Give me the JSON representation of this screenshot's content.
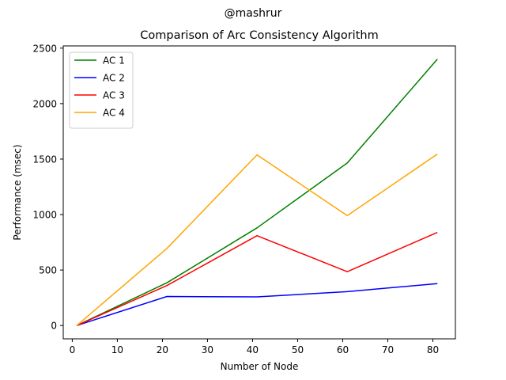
{
  "suptitle": "@mashrur",
  "chart_data": {
    "type": "line",
    "title": "Comparison of Arc Consistency Algorithm",
    "xlabel": "Number of Node",
    "ylabel": "Performance (msec)",
    "x": [
      1,
      21,
      41,
      61,
      81
    ],
    "xlim": [
      -2.0,
      85.0
    ],
    "ylim": [
      -120,
      2520
    ],
    "xticks": [
      0,
      10,
      20,
      30,
      40,
      50,
      60,
      70,
      80
    ],
    "yticks": [
      0,
      500,
      1000,
      1500,
      2000,
      2500
    ],
    "grid": false,
    "legend_position": "top-left",
    "series": [
      {
        "name": "AC 1",
        "color": "#008000",
        "values": [
          0,
          385,
          880,
          1465,
          2400
        ]
      },
      {
        "name": "AC 2",
        "color": "#0000ff",
        "values": [
          0,
          262,
          258,
          305,
          378
        ]
      },
      {
        "name": "AC 3",
        "color": "#ff0000",
        "values": [
          0,
          360,
          810,
          485,
          840
        ]
      },
      {
        "name": "AC 4",
        "color": "#ffa500",
        "values": [
          0,
          695,
          1538,
          990,
          1545
        ]
      }
    ]
  }
}
